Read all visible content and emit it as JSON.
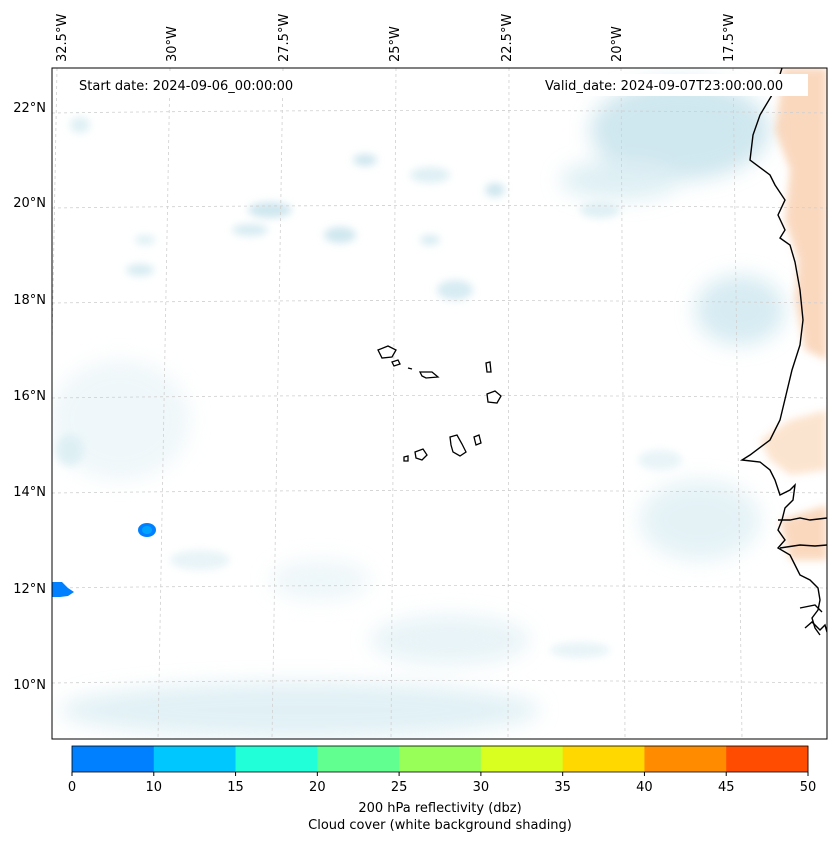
{
  "header": {
    "start_date": "Start date: 2024-09-06_00:00:00",
    "valid_date": "Valid_date: 2024-09-07T23:00:00.00"
  },
  "map": {
    "region": "Eastern tropical Atlantic, Cape Verde Islands and West African coast",
    "lon_ticks": [
      "32.5°W",
      "30°W",
      "27.5°W",
      "25°W",
      "22.5°W",
      "20°W",
      "17.5°W"
    ],
    "lat_ticks": [
      "22°N",
      "20°N",
      "18°N",
      "16°N",
      "14°N",
      "12°N",
      "10°N"
    ],
    "colors": {
      "cloud_cover": "#add8e6",
      "land_warm": "#f4a460",
      "coastline": "#000000",
      "grid": "#cccccc"
    }
  },
  "colorbar": {
    "ticks": [
      "0",
      "10",
      "15",
      "20",
      "25",
      "30",
      "35",
      "40",
      "45",
      "50"
    ],
    "colors": [
      "#0080ff",
      "#00c8ff",
      "#20ffd8",
      "#60ff90",
      "#98ff58",
      "#d8ff20",
      "#ffd800",
      "#ff8c00",
      "#ff4c00"
    ],
    "label_line1": "200 hPa reflectivity (dbz)",
    "label_line2": "Cloud cover (white background shading)"
  }
}
